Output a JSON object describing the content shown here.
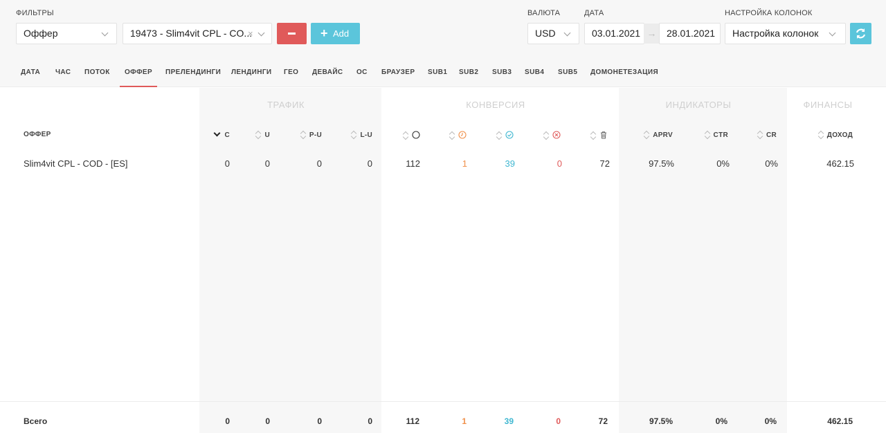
{
  "filters": {
    "label": "ФИЛЬТРЫ",
    "field": "Оффер",
    "value": "19473 - Slim4vit CPL - CO...",
    "add_label": "Add"
  },
  "currency": {
    "label": "ВАЛЮТА",
    "value": "USD"
  },
  "date": {
    "label": "ДАТА",
    "from": "03.01.2021",
    "arrow": "→",
    "to": "28.01.2021"
  },
  "columns": {
    "label": "НАСТРОЙКА КОЛОНОК",
    "value": "Настройка колонок"
  },
  "tabs": [
    "ДАТА",
    "ЧАС",
    "ПОТОК",
    "ОФФЕР",
    "ПРЕЛЕНДИНГИ",
    "ЛЕНДИНГИ",
    "ГЕО",
    "ДЕВАЙС",
    "ОС",
    "БРАУЗЕР",
    "SUB1",
    "SUB2",
    "SUB3",
    "SUB4",
    "SUB5",
    "ДОМОНЕТЕЗАЦИЯ"
  ],
  "active_tab": "ОФФЕР",
  "groups": {
    "traffic": "ТРАФИК",
    "conversion": "КОНВЕРСИЯ",
    "indicators": "ИНДИКАТОРЫ",
    "finance": "ФИНАНСЫ"
  },
  "headers": {
    "offer": "ОФФЕР",
    "c": "C",
    "u": "U",
    "pu": "P-U",
    "lu": "L-U",
    "aprv": "APRV",
    "ctr": "CTR",
    "cr": "CR",
    "income": "ДОХОД"
  },
  "row": {
    "offer": "Slim4vit CPL - COD - [ES]",
    "c": "0",
    "u": "0",
    "pu": "0",
    "lu": "0",
    "total": "112",
    "pending": "1",
    "approved": "39",
    "rejected": "0",
    "trash": "72",
    "aprv": "97.5%",
    "ctr": "0%",
    "cr": "0%",
    "income": "462.15"
  },
  "footer": {
    "label": "Всего",
    "c": "0",
    "u": "0",
    "pu": "0",
    "lu": "0",
    "total": "112",
    "pending": "1",
    "approved": "39",
    "rejected": "0",
    "trash": "72",
    "aprv": "97.5%",
    "ctr": "0%",
    "cr": "0%",
    "income": "462.15"
  },
  "colors": {
    "accent_red": "#e05a5a",
    "accent_teal": "#5bc5db",
    "orange": "#f0904a"
  }
}
